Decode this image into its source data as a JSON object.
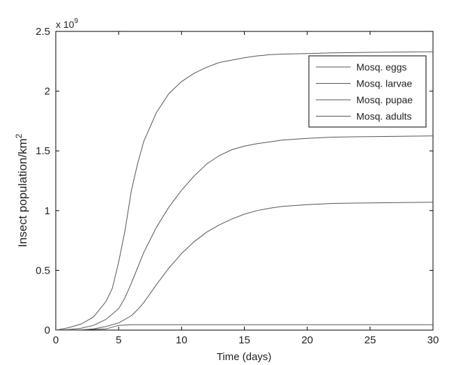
{
  "chart_data": {
    "type": "line",
    "xlabel": "Time (days)",
    "ylabel": "Insect population/km",
    "ylabel_superscript": "2",
    "y_scale_label": "x 10",
    "y_scale_exponent": "9",
    "xlim": [
      0,
      30
    ],
    "ylim": [
      0,
      2.5
    ],
    "x_ticks": [
      0,
      5,
      10,
      15,
      20,
      25,
      30
    ],
    "y_ticks": [
      0,
      0.5,
      1,
      1.5,
      2,
      2.5
    ],
    "x_tick_labels": [
      "0",
      "5",
      "10",
      "15",
      "20",
      "25",
      "30"
    ],
    "y_tick_labels": [
      "0",
      "0.5",
      "1",
      "1.5",
      "2",
      "2.5"
    ],
    "grid": false,
    "legend_position": "top-right",
    "line_color": "#555555",
    "series": [
      {
        "name": "Mosq. eggs",
        "x": [
          0,
          1,
          2,
          3,
          4,
          4.5,
          5,
          5.5,
          6,
          6.5,
          7,
          8,
          9,
          10,
          11,
          12,
          13,
          14,
          15,
          16,
          17,
          18,
          20,
          22,
          25,
          30
        ],
        "values": [
          0,
          0.02,
          0.05,
          0.11,
          0.24,
          0.35,
          0.57,
          0.83,
          1.16,
          1.39,
          1.58,
          1.82,
          1.98,
          2.08,
          2.15,
          2.2,
          2.24,
          2.26,
          2.28,
          2.295,
          2.305,
          2.31,
          2.315,
          2.32,
          2.325,
          2.33
        ]
      },
      {
        "name": "Mosq. larvae",
        "x": [
          0,
          1,
          2,
          3,
          4,
          5,
          5.5,
          6,
          6.5,
          7,
          8,
          9,
          10,
          11,
          12,
          13,
          14,
          15,
          16,
          17,
          18,
          20,
          22,
          25,
          30
        ],
        "values": [
          0,
          0.005,
          0.015,
          0.04,
          0.09,
          0.18,
          0.27,
          0.39,
          0.52,
          0.65,
          0.86,
          1.03,
          1.17,
          1.29,
          1.39,
          1.46,
          1.51,
          1.54,
          1.56,
          1.575,
          1.59,
          1.605,
          1.615,
          1.62,
          1.625
        ]
      },
      {
        "name": "Mosq. pupae",
        "x": [
          0,
          2,
          3,
          4,
          5,
          6,
          6.5,
          7,
          8,
          9,
          10,
          11,
          12,
          13,
          14,
          15,
          16,
          17,
          18,
          20,
          22,
          25,
          30
        ],
        "values": [
          0,
          0.003,
          0.01,
          0.03,
          0.06,
          0.12,
          0.17,
          0.23,
          0.38,
          0.52,
          0.64,
          0.74,
          0.82,
          0.88,
          0.93,
          0.97,
          1.0,
          1.02,
          1.035,
          1.05,
          1.06,
          1.065,
          1.07
        ]
      },
      {
        "name": "Mosq. adults",
        "x": [
          0,
          2,
          4,
          5,
          6,
          10,
          20,
          30
        ],
        "values": [
          0,
          0.002,
          0.01,
          0.04,
          0.045,
          0.045,
          0.045,
          0.045
        ]
      }
    ]
  }
}
